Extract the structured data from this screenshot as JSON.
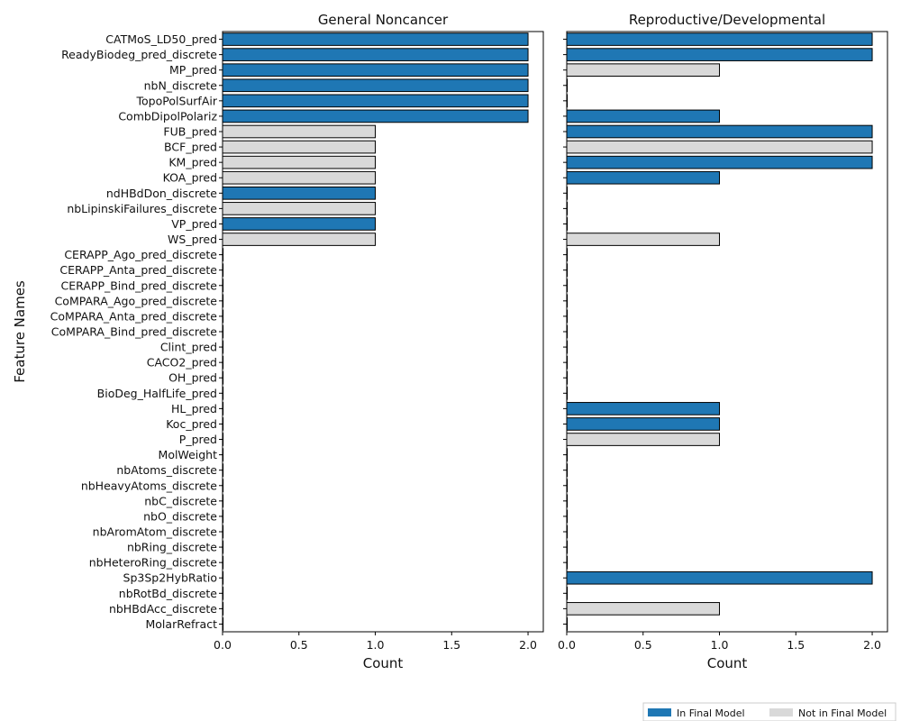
{
  "colors": {
    "in_final_model": "#1f77b4",
    "not_in_final_model": "#d9d9d9",
    "bar_edge": "#000000",
    "axis": "#000000"
  },
  "chart_data": {
    "type": "bar",
    "orientation": "horizontal",
    "ylabel": "Feature Names",
    "legend": {
      "placement": "bottom-right",
      "entries": [
        {
          "label": "In Final Model",
          "color": "#1f77b4"
        },
        {
          "label": "Not in Final Model",
          "color": "#d9d9d9"
        }
      ]
    },
    "categories": [
      "CATMoS_LD50_pred",
      "ReadyBiodeg_pred_discrete",
      "MP_pred",
      "nbN_discrete",
      "TopoPolSurfAir",
      "CombDipolPolariz",
      "FUB_pred",
      "BCF_pred",
      "KM_pred",
      "KOA_pred",
      "ndHBdDon_discrete",
      "nbLipinskiFailures_discrete",
      "VP_pred",
      "WS_pred",
      "CERAPP_Ago_pred_discrete",
      "CERAPP_Anta_pred_discrete",
      "CERAPP_Bind_pred_discrete",
      "CoMPARA_Ago_pred_discrete",
      "CoMPARA_Anta_pred_discrete",
      "CoMPARA_Bind_pred_discrete",
      "Clint_pred",
      "CACO2_pred",
      "OH_pred",
      "BioDeg_HalfLife_pred",
      "HL_pred",
      "Koc_pred",
      "P_pred",
      "MolWeight",
      "nbAtoms_discrete",
      "nbHeavyAtoms_discrete",
      "nbC_discrete",
      "nbO_discrete",
      "nbAromAtom_discrete",
      "nbRing_discrete",
      "nbHeteroRing_discrete",
      "Sp3Sp2HybRatio",
      "nbRotBd_discrete",
      "nbHBdAcc_discrete",
      "MolarRefract"
    ],
    "panels": [
      {
        "title": "General Noncancer",
        "xlabel": "Count",
        "xlim": [
          0,
          2.1
        ],
        "xticks": [
          "0.0",
          "0.5",
          "1.0",
          "1.5",
          "2.0"
        ],
        "values": [
          2,
          2,
          2,
          2,
          2,
          2,
          1,
          1,
          1,
          1,
          1,
          1,
          1,
          1,
          0,
          0,
          0,
          0,
          0,
          0,
          0,
          0,
          0,
          0,
          0,
          0,
          0,
          0,
          0,
          0,
          0,
          0,
          0,
          0,
          0,
          0,
          0,
          0,
          0
        ],
        "in_final_model": [
          true,
          true,
          true,
          true,
          true,
          true,
          false,
          false,
          false,
          false,
          true,
          false,
          true,
          false,
          false,
          false,
          false,
          false,
          false,
          false,
          false,
          false,
          false,
          false,
          false,
          false,
          false,
          false,
          false,
          false,
          false,
          false,
          false,
          false,
          false,
          false,
          false,
          false,
          false
        ]
      },
      {
        "title": "Reproductive/Developmental",
        "xlabel": "Count",
        "xlim": [
          0,
          2.1
        ],
        "xticks": [
          "0.0",
          "0.5",
          "1.0",
          "1.5",
          "2.0"
        ],
        "values": [
          2,
          2,
          1,
          0,
          0,
          1,
          2,
          2,
          2,
          1,
          0,
          0,
          0,
          1,
          0,
          0,
          0,
          0,
          0,
          0,
          0,
          0,
          0,
          0,
          1,
          1,
          1,
          0,
          0,
          0,
          0,
          0,
          0,
          0,
          0,
          2,
          0,
          1,
          0
        ],
        "in_final_model": [
          true,
          true,
          false,
          false,
          false,
          true,
          true,
          false,
          true,
          true,
          false,
          false,
          false,
          false,
          false,
          false,
          false,
          false,
          false,
          false,
          false,
          false,
          false,
          false,
          true,
          true,
          false,
          false,
          false,
          false,
          false,
          false,
          false,
          false,
          false,
          true,
          false,
          false,
          false
        ]
      }
    ]
  }
}
